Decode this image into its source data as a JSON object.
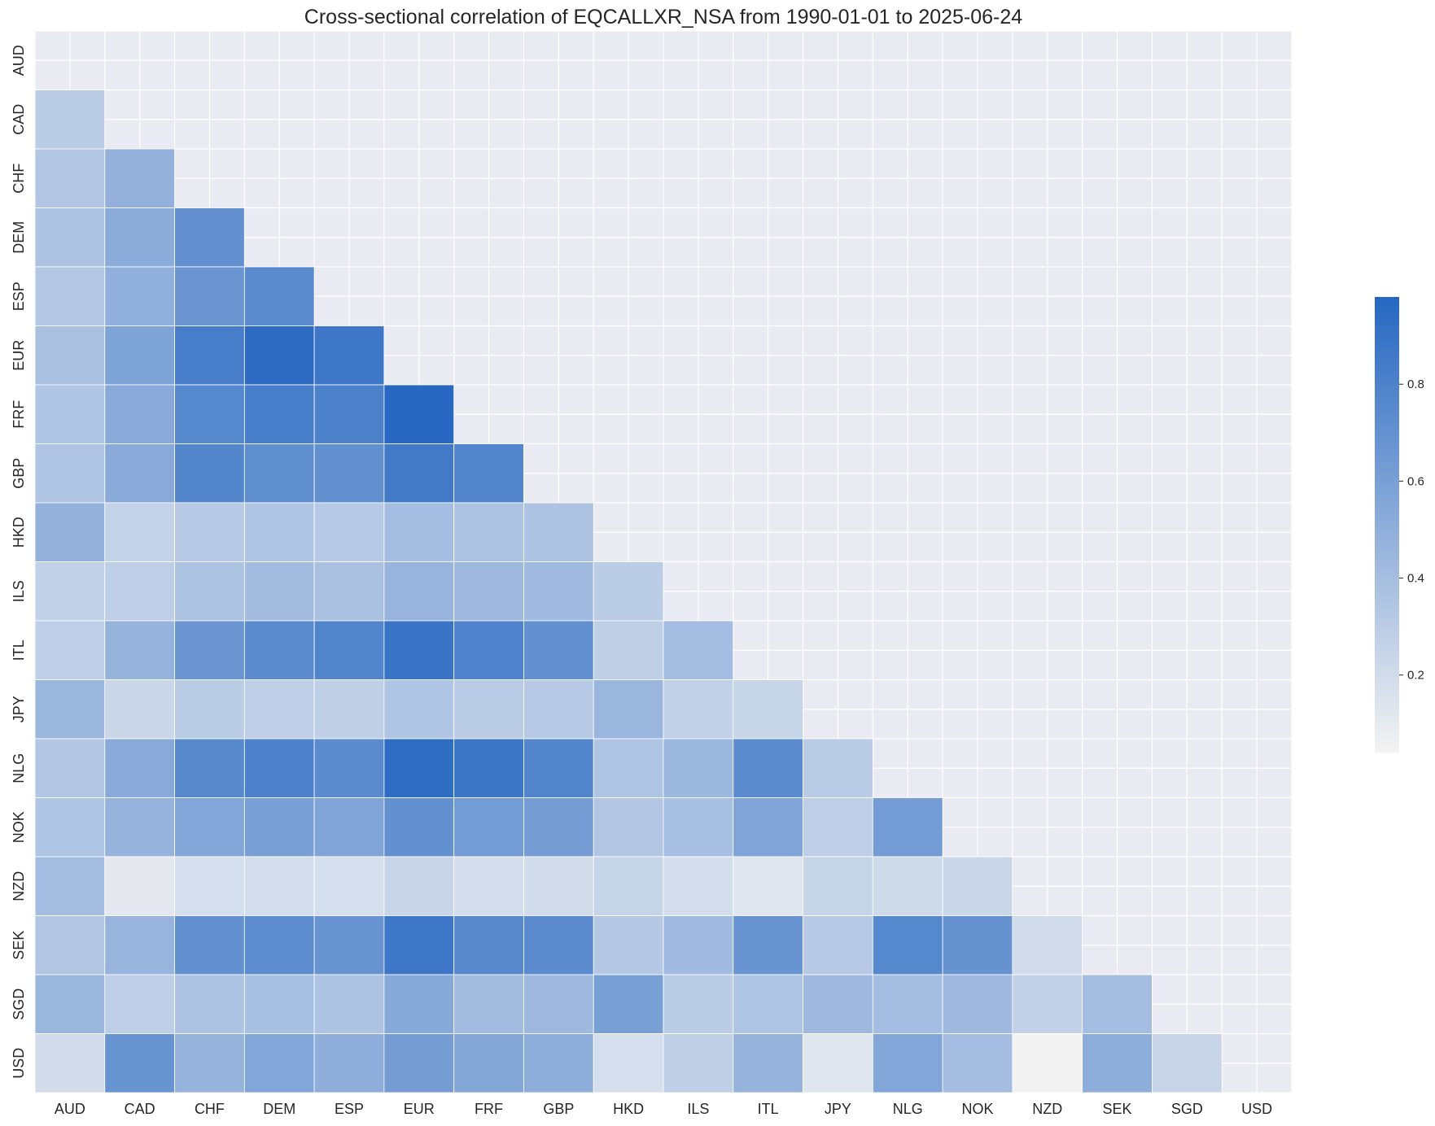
{
  "chart_data": {
    "type": "heatmap",
    "title": "Cross-sectional correlation of EQCALLXR_NSA from 1990-01-01 to 2025-06-24",
    "labels": [
      "AUD",
      "CAD",
      "CHF",
      "DEM",
      "ESP",
      "EUR",
      "FRF",
      "GBP",
      "HKD",
      "ILS",
      "ITL",
      "JPY",
      "NLG",
      "NOK",
      "NZD",
      "SEK",
      "SGD",
      "USD"
    ],
    "mask": "upper-triangle-including-diagonal",
    "matrix": [
      [
        null,
        null,
        null,
        null,
        null,
        null,
        null,
        null,
        null,
        null,
        null,
        null,
        null,
        null,
        null,
        null,
        null,
        null
      ],
      [
        0.3,
        null,
        null,
        null,
        null,
        null,
        null,
        null,
        null,
        null,
        null,
        null,
        null,
        null,
        null,
        null,
        null,
        null
      ],
      [
        0.34,
        0.48,
        null,
        null,
        null,
        null,
        null,
        null,
        null,
        null,
        null,
        null,
        null,
        null,
        null,
        null,
        null,
        null
      ],
      [
        0.36,
        0.52,
        0.7,
        null,
        null,
        null,
        null,
        null,
        null,
        null,
        null,
        null,
        null,
        null,
        null,
        null,
        null,
        null
      ],
      [
        0.33,
        0.49,
        0.67,
        0.74,
        null,
        null,
        null,
        null,
        null,
        null,
        null,
        null,
        null,
        null,
        null,
        null,
        null,
        null
      ],
      [
        0.38,
        0.58,
        0.83,
        0.95,
        0.87,
        null,
        null,
        null,
        null,
        null,
        null,
        null,
        null,
        null,
        null,
        null,
        null,
        null
      ],
      [
        0.35,
        0.53,
        0.76,
        0.83,
        0.8,
        0.97,
        null,
        null,
        null,
        null,
        null,
        null,
        null,
        null,
        null,
        null,
        null,
        null
      ],
      [
        0.35,
        0.53,
        0.77,
        0.72,
        0.7,
        0.85,
        0.78,
        null,
        null,
        null,
        null,
        null,
        null,
        null,
        null,
        null,
        null,
        null
      ],
      [
        0.48,
        0.26,
        0.32,
        0.35,
        0.32,
        0.4,
        0.36,
        0.36,
        null,
        null,
        null,
        null,
        null,
        null,
        null,
        null,
        null,
        null
      ],
      [
        0.27,
        0.29,
        0.37,
        0.41,
        0.38,
        0.46,
        0.43,
        0.42,
        0.3,
        null,
        null,
        null,
        null,
        null,
        null,
        null,
        null,
        null
      ],
      [
        0.29,
        0.47,
        0.67,
        0.74,
        0.78,
        0.89,
        0.79,
        0.7,
        0.28,
        0.4,
        null,
        null,
        null,
        null,
        null,
        null,
        null,
        null
      ],
      [
        0.44,
        0.23,
        0.3,
        0.29,
        0.28,
        0.35,
        0.31,
        0.32,
        0.45,
        0.27,
        0.25,
        null,
        null,
        null,
        null,
        null,
        null,
        null
      ],
      [
        0.34,
        0.53,
        0.75,
        0.8,
        0.74,
        0.94,
        0.88,
        0.78,
        0.35,
        0.44,
        0.74,
        0.31,
        null,
        null,
        null,
        null,
        null,
        null
      ],
      [
        0.35,
        0.47,
        0.56,
        0.6,
        0.57,
        0.7,
        0.63,
        0.62,
        0.34,
        0.39,
        0.57,
        0.29,
        0.63,
        null,
        null,
        null,
        null,
        null
      ],
      [
        0.4,
        0.11,
        0.18,
        0.19,
        0.18,
        0.24,
        0.19,
        0.2,
        0.25,
        0.19,
        0.13,
        0.25,
        0.21,
        0.23,
        null,
        null,
        null,
        null
      ],
      [
        0.34,
        0.46,
        0.7,
        0.73,
        0.68,
        0.87,
        0.75,
        0.74,
        0.33,
        0.42,
        0.68,
        0.32,
        0.76,
        0.69,
        0.2,
        null,
        null,
        null
      ],
      [
        0.45,
        0.29,
        0.36,
        0.39,
        0.36,
        0.54,
        0.41,
        0.43,
        0.6,
        0.3,
        0.35,
        0.43,
        0.4,
        0.43,
        0.27,
        0.4,
        null,
        null
      ],
      [
        0.2,
        0.68,
        0.47,
        0.56,
        0.5,
        0.62,
        0.55,
        0.51,
        0.18,
        0.28,
        0.47,
        0.13,
        0.56,
        0.4,
        0.04,
        0.51,
        0.24,
        null
      ]
    ],
    "colorbar": {
      "min": 0.04,
      "max": 0.98,
      "ticks": [
        0.2,
        0.4,
        0.6,
        0.8
      ],
      "low_color": "#f4f3f3",
      "high_color": "#2667c1"
    },
    "grid": true,
    "background_color": "#eaeaf2"
  }
}
